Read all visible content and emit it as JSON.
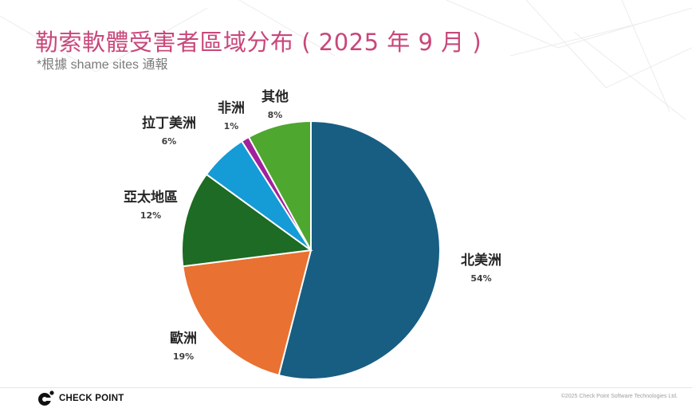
{
  "slide": {
    "title": "勒索軟體受害者區域分布 ( 2025 年 9 月 )",
    "subtitle": "*根據 shame sites 通報",
    "title_color": "#c9477a"
  },
  "chart_data": {
    "type": "pie",
    "title": "勒索軟體受害者區域分布 ( 2025 年 9 月 )",
    "subtitle": "*根據 shame sites 通報",
    "start_angle": "12 o'clock, clockwise",
    "categories": [
      "北美洲",
      "歐洲",
      "亞太地區",
      "拉丁美洲",
      "非洲",
      "其他"
    ],
    "values": [
      54,
      19,
      12,
      6,
      1,
      8
    ],
    "unit": "%",
    "colors": [
      "#175e82",
      "#e97131",
      "#1d6b24",
      "#159bd6",
      "#a0219b",
      "#4ea72e"
    ],
    "labels": [
      {
        "name": "北美洲",
        "pct": "54%"
      },
      {
        "name": "歐洲",
        "pct": "19%"
      },
      {
        "name": "亞太地區",
        "pct": "12%"
      },
      {
        "name": "拉丁美洲",
        "pct": "6%"
      },
      {
        "name": "非洲",
        "pct": "1%"
      },
      {
        "name": "其他",
        "pct": "8%"
      }
    ],
    "legend": "none (data labels outside slices)"
  },
  "footer": {
    "logo_text": "CHECK POINT",
    "copyright": "©2025 Check Point Software Technologies Ltd."
  }
}
